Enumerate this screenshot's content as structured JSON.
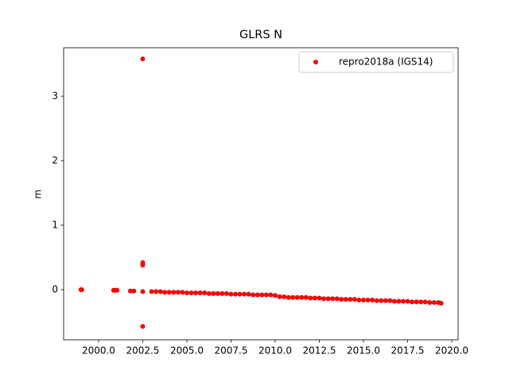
{
  "chart_data": {
    "type": "scatter",
    "title": "GLRS N",
    "y_label": "m",
    "xlim": [
      1998.02,
      2020.36
    ],
    "ylim": [
      -0.778,
      3.753
    ],
    "xticks": [
      {
        "value": 2000,
        "label": "2000.0"
      },
      {
        "value": 2002.5,
        "label": "2002.5"
      },
      {
        "value": 2005,
        "label": "2005.0"
      },
      {
        "value": 2007.5,
        "label": "2007.5"
      },
      {
        "value": 2010,
        "label": "2010.0"
      },
      {
        "value": 2012.5,
        "label": "2012.5"
      },
      {
        "value": 2015,
        "label": "2015.0"
      },
      {
        "value": 2017.5,
        "label": "2017.5"
      },
      {
        "value": 2020,
        "label": "2020.0"
      }
    ],
    "yticks": [
      0,
      1,
      2,
      3
    ],
    "grid": false,
    "legend": "upper right",
    "series": [
      {
        "name": "repro2018a (IGS14)",
        "color": "#ff0000",
        "x": [
          1999.0,
          1999.05,
          2000.85,
          2000.95,
          2001.05,
          2001.8,
          2002.0,
          2002.5,
          2002.5,
          2002.5,
          2002.5,
          2002.5,
          2003.0,
          2003.25,
          2003.5,
          2003.75,
          2004.0,
          2004.25,
          2004.5,
          2004.75,
          2005.0,
          2005.25,
          2005.5,
          2005.75,
          2006.0,
          2006.25,
          2006.5,
          2006.75,
          2007.0,
          2007.25,
          2007.5,
          2007.75,
          2008.0,
          2008.25,
          2008.5,
          2008.75,
          2009.0,
          2009.25,
          2009.5,
          2009.75,
          2010.0,
          2010.25,
          2010.5,
          2010.75,
          2011.0,
          2011.25,
          2011.5,
          2011.75,
          2012.0,
          2012.25,
          2012.5,
          2012.75,
          2013.0,
          2013.25,
          2013.5,
          2013.75,
          2014.0,
          2014.25,
          2014.5,
          2014.75,
          2015.0,
          2015.25,
          2015.5,
          2015.75,
          2016.0,
          2016.25,
          2016.5,
          2016.75,
          2017.0,
          2017.25,
          2017.5,
          2017.75,
          2018.0,
          2018.25,
          2018.5,
          2018.75,
          2019.0,
          2019.25,
          2019.4
        ],
        "values": [
          0.0,
          0.0,
          -0.01,
          -0.01,
          -0.01,
          -0.02,
          -0.02,
          3.58,
          0.42,
          0.38,
          -0.03,
          -0.57,
          -0.03,
          -0.03,
          -0.03,
          -0.04,
          -0.04,
          -0.04,
          -0.04,
          -0.04,
          -0.05,
          -0.05,
          -0.05,
          -0.05,
          -0.05,
          -0.06,
          -0.06,
          -0.06,
          -0.06,
          -0.06,
          -0.07,
          -0.07,
          -0.07,
          -0.07,
          -0.07,
          -0.08,
          -0.08,
          -0.08,
          -0.08,
          -0.08,
          -0.09,
          -0.11,
          -0.11,
          -0.12,
          -0.12,
          -0.12,
          -0.12,
          -0.12,
          -0.13,
          -0.13,
          -0.13,
          -0.14,
          -0.14,
          -0.14,
          -0.14,
          -0.15,
          -0.15,
          -0.15,
          -0.15,
          -0.16,
          -0.16,
          -0.16,
          -0.16,
          -0.17,
          -0.17,
          -0.17,
          -0.17,
          -0.18,
          -0.18,
          -0.18,
          -0.18,
          -0.19,
          -0.19,
          -0.19,
          -0.19,
          -0.2,
          -0.2,
          -0.2,
          -0.21
        ]
      }
    ]
  }
}
